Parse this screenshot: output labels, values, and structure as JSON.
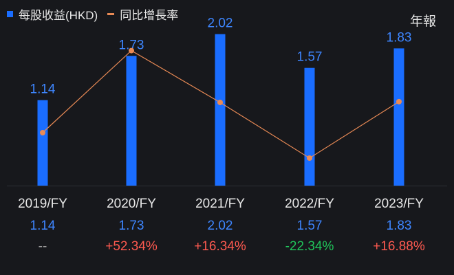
{
  "legend": {
    "eps_label": "每股收益(HKD)",
    "growth_label": "同比增長率"
  },
  "period_selector": "年報",
  "colors": {
    "bar": "#1a6dff",
    "line": "#e98a55",
    "positive": "#ff5a50",
    "negative": "#20c45a",
    "neutral": "#9a9a9a"
  },
  "chart_data": {
    "type": "bar",
    "categories": [
      "2019/FY",
      "2020/FY",
      "2021/FY",
      "2022/FY",
      "2023/FY"
    ],
    "series": [
      {
        "name": "每股收益(HKD)",
        "type": "bar",
        "values": [
          1.14,
          1.73,
          2.02,
          1.57,
          1.83
        ]
      },
      {
        "name": "同比增長率",
        "type": "line",
        "values": [
          null,
          52.34,
          16.34,
          -22.34,
          16.88
        ]
      }
    ],
    "bar_labels": [
      "1.14",
      "1.73",
      "2.02",
      "1.57",
      "1.83"
    ],
    "ylim": [
      0,
      2.2
    ],
    "growth_range": [
      -30,
      55
    ],
    "legend_position": "top-left",
    "grid": false
  },
  "table": {
    "years": [
      "2019/FY",
      "2020/FY",
      "2021/FY",
      "2022/FY",
      "2023/FY"
    ],
    "eps": [
      "1.14",
      "1.73",
      "2.02",
      "1.57",
      "1.83"
    ],
    "growth": [
      "--",
      "+52.34%",
      "+16.34%",
      "-22.34%",
      "+16.88%"
    ]
  }
}
